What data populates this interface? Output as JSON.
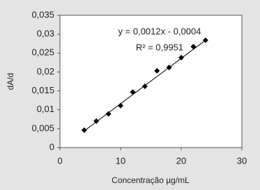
{
  "chart_data": {
    "type": "scatter",
    "x": [
      4,
      6,
      8,
      10,
      12,
      14,
      16,
      18,
      20,
      22,
      24
    ],
    "values": [
      0.0046,
      0.007,
      0.0089,
      0.0111,
      0.0147,
      0.0162,
      0.0203,
      0.0212,
      0.0238,
      0.0267,
      0.0284
    ],
    "color": "#000000",
    "trendline": {
      "slope": 0.0012,
      "intercept": -0.0004,
      "color": "#000000"
    },
    "annotations": [
      "y = 0,0012x - 0,0004",
      "R² = 0,9951"
    ],
    "x_label": "Concentração µg/mL",
    "y_label": "dA/d",
    "xlim": [
      0,
      30
    ],
    "xticks": [
      0,
      10,
      20,
      30
    ],
    "ylim": [
      0,
      0.035
    ],
    "yticks": [
      0,
      {
        "value": 0.005,
        "label": "0,005"
      },
      {
        "value": 0.01,
        "label": "0,01"
      },
      {
        "value": 0.015,
        "label": "0,015"
      },
      {
        "value": 0.02,
        "label": "0,02"
      },
      {
        "value": 0.025,
        "label": "0,025"
      },
      {
        "value": 0.03,
        "label": "0,03"
      },
      {
        "value": 0.035,
        "label": "0,035"
      }
    ],
    "grid": false
  }
}
